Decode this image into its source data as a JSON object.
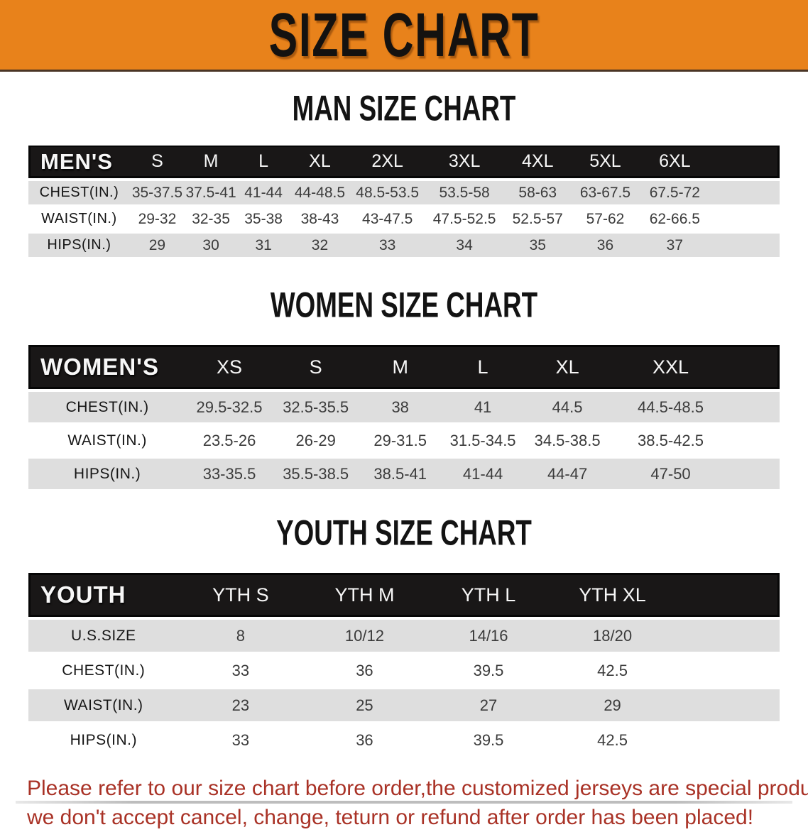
{
  "banner": {
    "title": "SIZE CHART",
    "bg_color": "#e8821b",
    "text_color": "#141210"
  },
  "sections": {
    "men": {
      "heading": "MAN SIZE CHART",
      "table": {
        "label": "MEN'S",
        "columns": [
          "S",
          "M",
          "L",
          "XL",
          "2XL",
          "3XL",
          "4XL",
          "5XL",
          "6XL"
        ],
        "rows": [
          {
            "label": "CHEST(IN.)",
            "values": [
              "35-37.5",
              "37.5-41",
              "41-44",
              "44-48.5",
              "48.5-53.5",
              "53.5-58",
              "58-63",
              "63-67.5",
              "67.5-72"
            ]
          },
          {
            "label": "WAIST(IN.)",
            "values": [
              "29-32",
              "32-35",
              "35-38",
              "38-43",
              "43-47.5",
              "47.5-52.5",
              "52.5-57",
              "57-62",
              "62-66.5"
            ]
          },
          {
            "label": "HIPS(IN.)",
            "values": [
              "29",
              "30",
              "31",
              "32",
              "33",
              "34",
              "35",
              "36",
              "37"
            ]
          }
        ]
      }
    },
    "women": {
      "heading": "WOMEN SIZE CHART",
      "table": {
        "label": "WOMEN'S",
        "columns": [
          "XS",
          "S",
          "M",
          "L",
          "XL",
          "XXL"
        ],
        "rows": [
          {
            "label": "CHEST(IN.)",
            "values": [
              "29.5-32.5",
              "32.5-35.5",
              "38",
              "41",
              "44.5",
              "44.5-48.5"
            ]
          },
          {
            "label": "WAIST(IN.)",
            "values": [
              "23.5-26",
              "26-29",
              "29-31.5",
              "31.5-34.5",
              "34.5-38.5",
              "38.5-42.5"
            ]
          },
          {
            "label": "HIPS(IN.)",
            "values": [
              "33-35.5",
              "35.5-38.5",
              "38.5-41",
              "41-44",
              "44-47",
              "47-50"
            ]
          }
        ]
      }
    },
    "youth": {
      "heading": "YOUTH SIZE CHART",
      "table": {
        "label": "YOUTH",
        "columns": [
          "YTH S",
          "YTH M",
          "YTH L",
          "YTH XL"
        ],
        "rows": [
          {
            "label": "U.S.SIZE",
            "values": [
              "8",
              "10/12",
              "14/16",
              "18/20"
            ]
          },
          {
            "label": "CHEST(IN.)",
            "values": [
              "33",
              "36",
              "39.5",
              "42.5"
            ]
          },
          {
            "label": "WAIST(IN.)",
            "values": [
              "23",
              "25",
              "27",
              "29"
            ]
          },
          {
            "label": "HIPS(IN.)",
            "values": [
              "33",
              "36",
              "39.5",
              "42.5"
            ]
          }
        ]
      }
    }
  },
  "disclaimer": {
    "line1": "Please refer to our size chart before order,the customized jerseys are special products,",
    "line2": "we don't accept cancel, change, teturn or refund after order has been placed!",
    "color": "#a93226"
  }
}
